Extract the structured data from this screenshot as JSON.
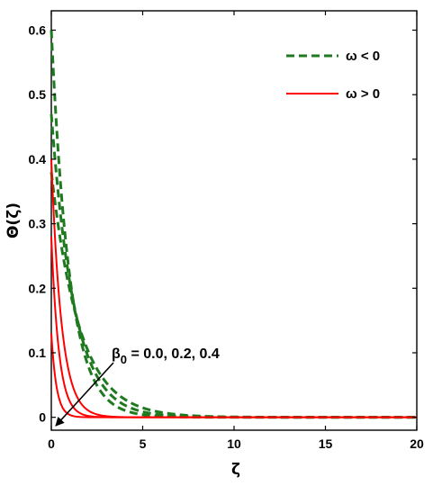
{
  "chart_data": {
    "type": "line",
    "xlabel": "ζ",
    "ylabel": "Θ(ζ)",
    "xlim": [
      0,
      20
    ],
    "ylim": [
      -0.02,
      0.63
    ],
    "x_ticks": [
      0,
      5,
      10,
      15,
      20
    ],
    "x_tick_labels": [
      "0",
      "5",
      "10",
      "15",
      "20"
    ],
    "y_ticks": [
      0,
      0.1,
      0.2,
      0.3,
      0.4,
      0.5,
      0.6
    ],
    "y_tick_labels": [
      "0",
      "0.1",
      "0.2",
      "0.3",
      "0.4",
      "0.5",
      "0.6"
    ],
    "grid": false,
    "legend_position": "top-right",
    "legend": [
      {
        "label": "ω < 0",
        "color": "#1f7a1f",
        "dash": "dashed"
      },
      {
        "label": "ω > 0",
        "color": "#ff0000",
        "dash": "solid"
      }
    ],
    "annotation": {
      "beta_symbol": "β",
      "subscript": "0",
      "text": " = 0.0, 0.2, 0.4"
    },
    "series": [
      {
        "group": "ω < 0",
        "color": "#1f7a1f",
        "dash": "dashed",
        "y0": 0.6,
        "decay": 1.0
      },
      {
        "group": "ω < 0",
        "color": "#1f7a1f",
        "dash": "dashed",
        "y0": 0.47,
        "decay": 0.8
      },
      {
        "group": "ω < 0",
        "color": "#1f7a1f",
        "dash": "dashed",
        "y0": 0.38,
        "decay": 0.65
      },
      {
        "group": "ω > 0",
        "color": "#ff0000",
        "dash": "solid",
        "y0": 0.4,
        "decay": 1.8
      },
      {
        "group": "ω > 0",
        "color": "#ff0000",
        "dash": "solid",
        "y0": 0.28,
        "decay": 2.4
      },
      {
        "group": "ω > 0",
        "color": "#ff0000",
        "dash": "solid",
        "y0": 0.13,
        "decay": 3.5
      }
    ]
  }
}
